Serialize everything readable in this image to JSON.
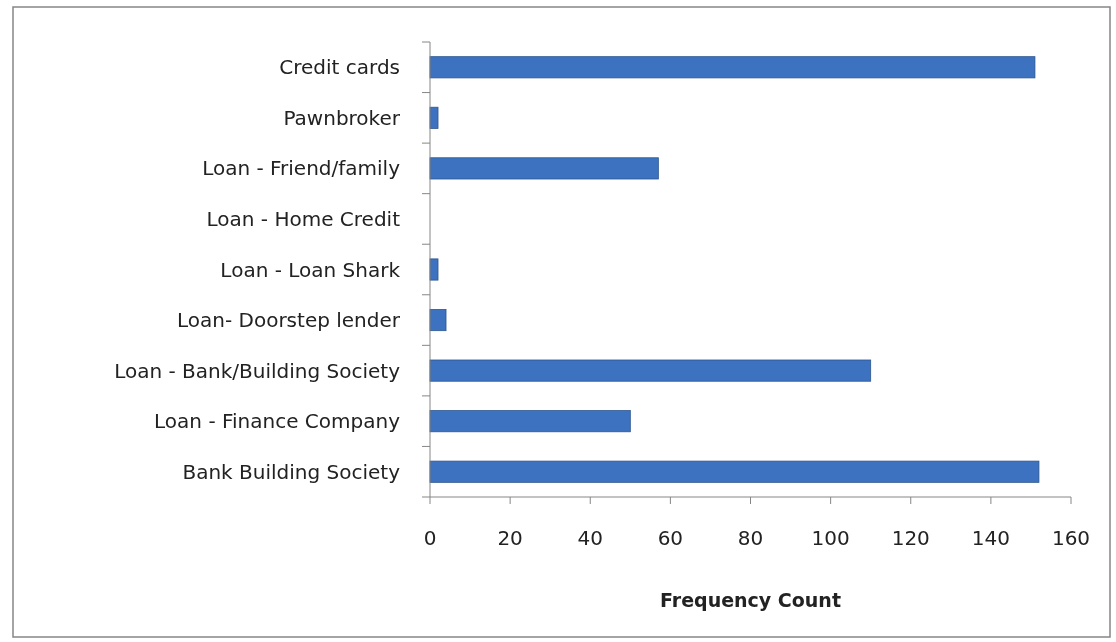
{
  "chart_data": {
    "type": "bar",
    "orientation": "horizontal",
    "xlabel": "Frequency Count",
    "categories": [
      "Credit cards",
      "Pawnbroker",
      "Loan - Friend/family",
      "Loan - Home Credit",
      "Loan - Loan Shark",
      "Loan- Doorstep lender",
      "Loan - Bank/Building Society",
      "Loan - Finance Company",
      "Bank Building Society"
    ],
    "values": [
      151,
      2,
      57,
      0,
      2,
      4,
      110,
      50,
      152
    ],
    "color": "#3c72bf",
    "xlim": [
      0,
      160
    ],
    "xticks": [
      0,
      20,
      40,
      60,
      80,
      100,
      120,
      140,
      160
    ],
    "grid": false
  }
}
